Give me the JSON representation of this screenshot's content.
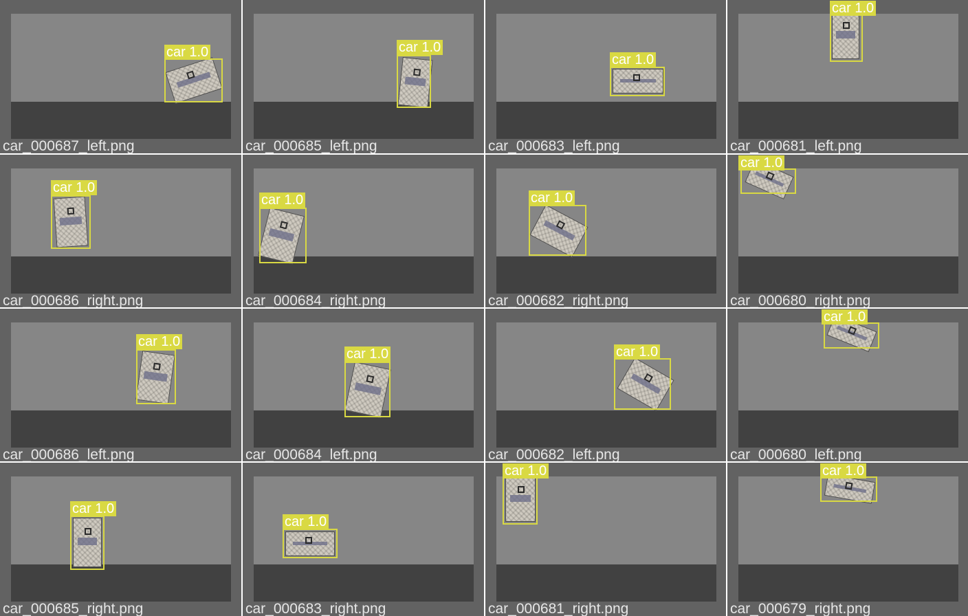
{
  "tiles": [
    {
      "filename": "car_000687_left.png",
      "label": "car 1.0"
    },
    {
      "filename": "car_000685_left.png",
      "label": "car 1.0"
    },
    {
      "filename": "car_000683_left.png",
      "label": "car 1.0"
    },
    {
      "filename": "car_000681_left.png",
      "label": "car 1.0"
    },
    {
      "filename": "car_000686_right.png",
      "label": "car 1.0"
    },
    {
      "filename": "car_000684_right.png",
      "label": "car 1.0"
    },
    {
      "filename": "car_000682_right.png",
      "label": "car 1.0"
    },
    {
      "filename": "car_000680_right.png",
      "label": "car 1.0"
    },
    {
      "filename": "car_000686_left.png",
      "label": "car 1.0"
    },
    {
      "filename": "car_000684_left.png",
      "label": "car 1.0"
    },
    {
      "filename": "car_000682_left.png",
      "label": "car 1.0"
    },
    {
      "filename": "car_000680_left.png",
      "label": "car 1.0"
    },
    {
      "filename": "car_000685_right.png",
      "label": "car 1.0"
    },
    {
      "filename": "car_000683_right.png",
      "label": "car 1.0"
    },
    {
      "filename": "car_000681_right.png",
      "label": "car 1.0"
    },
    {
      "filename": "car_000679_right.png",
      "label": "car 1.0"
    }
  ]
}
